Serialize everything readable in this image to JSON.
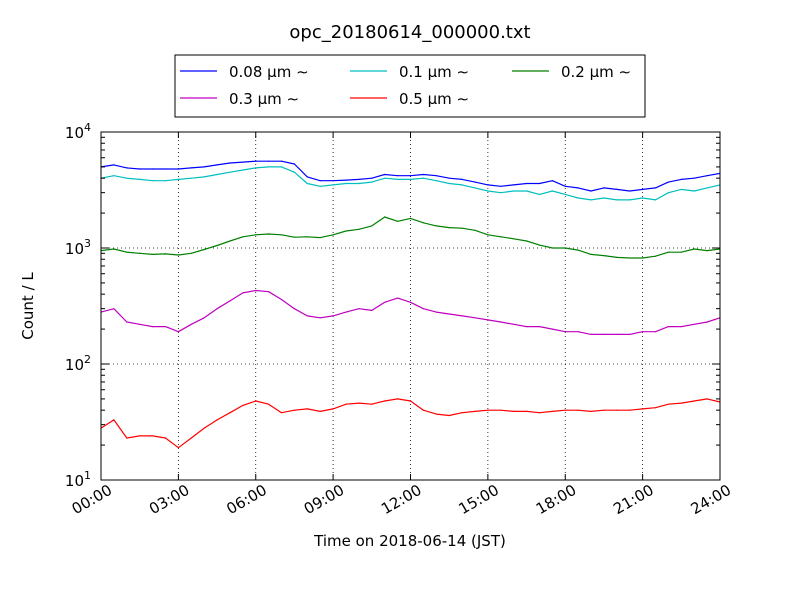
{
  "chart_data": {
    "type": "line",
    "title": "opc_20180614_000000.txt",
    "xlabel": "Time on 2018-06-14 (JST)",
    "ylabel": "Count / L",
    "yscale": "log",
    "ylim": [
      10,
      10000
    ],
    "xlim": [
      0,
      24
    ],
    "grid": true,
    "legend_position": "top-center",
    "x_tick_labels": [
      "00:00",
      "03:00",
      "06:00",
      "09:00",
      "12:00",
      "15:00",
      "18:00",
      "21:00",
      "24:00"
    ],
    "y_tick_labels": [
      {
        "base": "10",
        "exp": "1"
      },
      {
        "base": "10",
        "exp": "2"
      },
      {
        "base": "10",
        "exp": "3"
      },
      {
        "base": "10",
        "exp": "4"
      }
    ],
    "x_hours": [
      0,
      0.5,
      1,
      1.5,
      2,
      2.5,
      3,
      3.5,
      4,
      4.5,
      5,
      5.5,
      6,
      6.5,
      7,
      7.5,
      8,
      8.5,
      9,
      9.5,
      10,
      10.5,
      11,
      11.5,
      12,
      12.5,
      13,
      13.5,
      14,
      14.5,
      15,
      15.5,
      16,
      16.5,
      17,
      17.5,
      18,
      18.5,
      19,
      19.5,
      20,
      20.5,
      21,
      21.5,
      22,
      22.5,
      23,
      23.5,
      24
    ],
    "series": [
      {
        "name": "0.08 μm ∼",
        "color": "#0000ff",
        "values": [
          5000,
          5200,
          4900,
          4800,
          4800,
          4800,
          4800,
          4900,
          5000,
          5200,
          5400,
          5500,
          5600,
          5600,
          5600,
          5300,
          4100,
          3800,
          3800,
          3850,
          3900,
          4000,
          4300,
          4200,
          4200,
          4300,
          4200,
          4000,
          3900,
          3700,
          3500,
          3400,
          3500,
          3600,
          3600,
          3800,
          3400,
          3300,
          3100,
          3300,
          3200,
          3100,
          3200,
          3300,
          3700,
          3900,
          4000,
          4200,
          4400
        ]
      },
      {
        "name": "0.1 μm ∼",
        "color": "#00bfbf",
        "values": [
          4000,
          4200,
          4000,
          3900,
          3800,
          3800,
          3900,
          4000,
          4100,
          4300,
          4500,
          4700,
          4900,
          5000,
          5000,
          4500,
          3600,
          3400,
          3500,
          3600,
          3600,
          3700,
          4000,
          3900,
          3900,
          4000,
          3800,
          3600,
          3500,
          3300,
          3100,
          3000,
          3100,
          3100,
          2900,
          3100,
          2900,
          2700,
          2600,
          2700,
          2600,
          2600,
          2700,
          2600,
          3000,
          3200,
          3100,
          3300,
          3500
        ]
      },
      {
        "name": "0.2 μm ∼",
        "color": "#008000",
        "values": [
          950,
          980,
          920,
          900,
          880,
          890,
          870,
          900,
          970,
          1050,
          1150,
          1250,
          1300,
          1320,
          1300,
          1240,
          1250,
          1230,
          1300,
          1400,
          1450,
          1550,
          1850,
          1700,
          1800,
          1650,
          1550,
          1500,
          1480,
          1420,
          1300,
          1250,
          1200,
          1150,
          1060,
          1000,
          1000,
          960,
          880,
          860,
          830,
          820,
          820,
          850,
          920,
          920,
          980,
          950,
          980
        ]
      },
      {
        "name": "0.3 μm ∼",
        "color": "#bf00bf",
        "values": [
          280,
          300,
          230,
          220,
          210,
          210,
          190,
          220,
          250,
          300,
          350,
          410,
          430,
          420,
          360,
          300,
          260,
          250,
          260,
          280,
          300,
          290,
          340,
          370,
          340,
          300,
          280,
          270,
          260,
          250,
          240,
          230,
          220,
          210,
          210,
          200,
          190,
          190,
          180,
          180,
          180,
          180,
          190,
          190,
          210,
          210,
          220,
          230,
          250
        ]
      },
      {
        "name": "0.5 μm ∼",
        "color": "#ff0000",
        "values": [
          28,
          33,
          23,
          24,
          24,
          23,
          19,
          23,
          28,
          33,
          38,
          44,
          48,
          45,
          38,
          40,
          41,
          39,
          41,
          45,
          46,
          45,
          48,
          50,
          48,
          40,
          37,
          36,
          38,
          39,
          40,
          40,
          39,
          39,
          38,
          39,
          40,
          40,
          39,
          40,
          40,
          40,
          41,
          42,
          45,
          46,
          48,
          50,
          47
        ]
      }
    ]
  }
}
